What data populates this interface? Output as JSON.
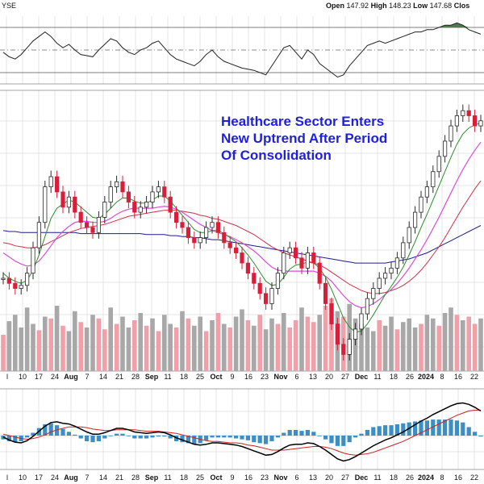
{
  "header": {
    "exchange": "YSE",
    "open_label": "Open",
    "open_value": "147.92",
    "high_label": "High",
    "high_value": "148.23",
    "low_label": "Low",
    "low_value": "147.68",
    "close_label": "Clos"
  },
  "annotation": {
    "line1": "Healthcare Sector Enters",
    "line2": "New Uptrend After Period",
    "line3": "Of Consolidation"
  },
  "colors": {
    "up_candle": "#2a2a2a",
    "down_candle": "#d81e3a",
    "ma_fast": "#2e8b2e",
    "ma_mid": "#d84ed8",
    "ma_slow": "#d03048",
    "ma_long": "#1c1c8c",
    "volume_up": "#a8a8a8",
    "volume_down": "#f0a0a8",
    "annotation_text": "#1f1fe0",
    "macd_line": "#000000",
    "signal_line": "#d02020",
    "histogram": "#3b8fc4",
    "rsi_fill": "#4e7a4e"
  },
  "chart_data": {
    "type": "line",
    "title": "Healthcare Sector Enters New Uptrend After Period Of Consolidation",
    "x_tick_labels": [
      "l",
      "10",
      "17",
      "24",
      "Aug",
      "7",
      "14",
      "21",
      "28",
      "Sep",
      "11",
      "18",
      "25",
      "Oct",
      "9",
      "16",
      "23",
      "Nov",
      "6",
      "13",
      "20",
      "27",
      "Dec",
      "11",
      "18",
      "26",
      "2024",
      "8",
      "16",
      "22"
    ],
    "grid": true,
    "panels": [
      "rsi",
      "price_volume",
      "macd"
    ],
    "price": {
      "ylim": [
        125,
        152
      ],
      "close": [
        133.5,
        133.0,
        132.5,
        132.8,
        134.0,
        136.5,
        139.0,
        142.5,
        143.5,
        142.0,
        140.5,
        141.5,
        140.0,
        139.0,
        138.5,
        138.0,
        139.5,
        141.0,
        142.5,
        143.0,
        142.0,
        141.0,
        140.0,
        140.5,
        141.0,
        142.0,
        142.5,
        141.5,
        140.0,
        139.0,
        138.5,
        137.5,
        137.0,
        137.5,
        138.5,
        139.0,
        138.0,
        137.0,
        136.5,
        136.0,
        135.0,
        134.0,
        133.0,
        132.0,
        131.0,
        132.5,
        134.0,
        136.0,
        136.5,
        135.5,
        134.5,
        136.0,
        135.0,
        133.0,
        131.0,
        129.0,
        127.0,
        126.0,
        127.5,
        128.5,
        130.0,
        131.5,
        132.5,
        133.5,
        134.0,
        134.5,
        135.5,
        137.0,
        138.5,
        140.0,
        141.5,
        142.5,
        144.0,
        145.5,
        147.0,
        148.5,
        149.5,
        150.0,
        149.5,
        148.5,
        149.0
      ],
      "ma_fast": [
        134.0,
        133.5,
        133.2,
        133.0,
        133.3,
        134.3,
        135.8,
        137.6,
        139.4,
        140.4,
        140.8,
        141.2,
        141.0,
        140.5,
        140.0,
        139.5,
        139.4,
        139.8,
        140.4,
        141.0,
        141.4,
        141.4,
        141.1,
        140.9,
        140.9,
        141.2,
        141.6,
        141.6,
        141.1,
        140.4,
        139.7,
        139.0,
        138.3,
        138.0,
        138.0,
        138.2,
        138.2,
        137.9,
        137.5,
        137.1,
        136.5,
        135.8,
        135.0,
        134.1,
        133.2,
        132.8,
        132.9,
        133.6,
        134.4,
        134.8,
        134.9,
        135.1,
        135.0,
        134.5,
        133.6,
        132.4,
        131.0,
        129.6,
        128.7,
        128.2,
        128.3,
        129.0,
        129.9,
        130.9,
        131.9,
        132.7,
        133.6,
        134.6,
        135.8,
        137.1,
        138.5,
        139.8,
        141.2,
        142.6,
        144.0,
        145.4,
        146.7,
        147.7,
        148.3,
        148.6,
        148.8
      ],
      "ma_mid": [
        136.0,
        135.6,
        135.2,
        134.9,
        134.7,
        134.8,
        135.2,
        135.9,
        136.7,
        137.5,
        138.1,
        138.6,
        139.0,
        139.1,
        139.1,
        139.0,
        139.0,
        139.1,
        139.4,
        139.8,
        140.1,
        140.3,
        140.4,
        140.4,
        140.4,
        140.4,
        140.5,
        140.6,
        140.5,
        140.3,
        140.0,
        139.6,
        139.2,
        138.8,
        138.5,
        138.2,
        138.0,
        137.8,
        137.6,
        137.3,
        137.0,
        136.6,
        136.2,
        135.7,
        135.1,
        134.6,
        134.3,
        134.2,
        134.2,
        134.2,
        134.2,
        134.2,
        134.2,
        134.0,
        133.7,
        133.2,
        132.5,
        131.8,
        131.2,
        130.8,
        130.6,
        130.7,
        131.0,
        131.4,
        131.9,
        132.4,
        133.0,
        133.7,
        134.5,
        135.4,
        136.3,
        137.3,
        138.4,
        139.5,
        140.7,
        141.9,
        143.1,
        144.2,
        145.2,
        146.1,
        146.9
      ],
      "ma_slow": [
        137.0,
        136.9,
        136.7,
        136.6,
        136.5,
        136.5,
        136.6,
        136.8,
        137.1,
        137.4,
        137.7,
        138.0,
        138.2,
        138.4,
        138.5,
        138.6,
        138.7,
        138.8,
        139.0,
        139.2,
        139.4,
        139.6,
        139.7,
        139.8,
        139.9,
        140.0,
        140.1,
        140.2,
        140.2,
        140.2,
        140.1,
        140.0,
        139.9,
        139.7,
        139.6,
        139.4,
        139.3,
        139.1,
        138.9,
        138.7,
        138.4,
        138.1,
        137.8,
        137.4,
        137.0,
        136.6,
        136.3,
        136.0,
        135.8,
        135.6,
        135.4,
        135.2,
        135.0,
        134.8,
        134.5,
        134.1,
        133.7,
        133.3,
        132.9,
        132.6,
        132.3,
        132.1,
        132.0,
        132.0,
        132.1,
        132.3,
        132.5,
        132.8,
        133.2,
        133.7,
        134.3,
        135.0,
        135.8,
        136.6,
        137.5,
        138.5,
        139.5,
        140.5,
        141.4,
        142.3,
        143.1
      ],
      "ma_long": [
        138.2,
        138.1,
        138.1,
        138.0,
        138.0,
        138.0,
        138.0,
        138.0,
        138.0,
        138.0,
        138.0,
        138.0,
        138.0,
        137.9,
        137.9,
        137.9,
        137.9,
        137.9,
        137.9,
        137.9,
        137.9,
        137.9,
        137.9,
        137.9,
        137.8,
        137.8,
        137.8,
        137.8,
        137.7,
        137.7,
        137.6,
        137.6,
        137.5,
        137.5,
        137.4,
        137.3,
        137.3,
        137.2,
        137.1,
        137.0,
        136.9,
        136.8,
        136.7,
        136.6,
        136.5,
        136.4,
        136.3,
        136.2,
        136.1,
        136.0,
        135.9,
        135.8,
        135.7,
        135.6,
        135.5,
        135.4,
        135.3,
        135.2,
        135.1,
        135.0,
        135.0,
        135.0,
        135.0,
        135.0,
        135.0,
        135.1,
        135.2,
        135.3,
        135.4,
        135.6,
        135.8,
        136.0,
        136.3,
        136.6,
        136.9,
        137.2,
        137.5,
        137.8,
        138.1,
        138.4,
        138.7
      ]
    },
    "volume": {
      "values": [
        40,
        55,
        62,
        48,
        70,
        52,
        45,
        60,
        58,
        72,
        50,
        44,
        66,
        54,
        48,
        62,
        58,
        46,
        70,
        52,
        60,
        48,
        56,
        64,
        50,
        58,
        44,
        62,
        52,
        48,
        66,
        58,
        50,
        60,
        44,
        56,
        64,
        52,
        48,
        60,
        68,
        56,
        50,
        62,
        46,
        58,
        52,
        64,
        48,
        56,
        70,
        60,
        54,
        62,
        72,
        80,
        66,
        60,
        74,
        58,
        52,
        48,
        44,
        56,
        50,
        60,
        46,
        54,
        58,
        48,
        52,
        62,
        58,
        50,
        64,
        70,
        62,
        56,
        60,
        52,
        58
      ],
      "up": [
        0,
        1,
        1,
        1,
        1,
        1,
        0,
        1,
        0,
        1,
        0,
        1,
        1,
        0,
        1,
        1,
        0,
        0,
        1,
        0,
        1,
        1,
        0,
        1,
        0,
        1,
        0,
        1,
        1,
        0,
        1,
        0,
        1,
        1,
        0,
        1,
        0,
        1,
        0,
        1,
        1,
        0,
        1,
        0,
        1,
        1,
        0,
        1,
        0,
        0,
        1,
        0,
        0,
        1,
        0,
        0,
        1,
        0,
        1,
        1,
        1,
        1,
        1,
        0,
        1,
        1,
        0,
        1,
        1,
        1,
        0,
        1,
        1,
        0,
        1,
        1,
        0,
        1,
        0,
        0,
        1
      ]
    },
    "rsi": {
      "ylim": [
        20,
        80
      ],
      "overbought": 70,
      "oversold": 30,
      "mid": 50,
      "values": [
        48,
        44,
        42,
        46,
        52,
        58,
        62,
        66,
        62,
        56,
        52,
        55,
        50,
        46,
        45,
        44,
        50,
        55,
        60,
        58,
        52,
        48,
        46,
        50,
        52,
        56,
        58,
        52,
        46,
        42,
        40,
        38,
        36,
        40,
        46,
        50,
        44,
        40,
        38,
        36,
        34,
        33,
        32,
        30,
        28,
        36,
        44,
        52,
        54,
        48,
        42,
        50,
        46,
        38,
        34,
        30,
        26,
        28,
        36,
        42,
        48,
        54,
        56,
        58,
        56,
        58,
        60,
        62,
        64,
        66,
        66,
        68,
        68,
        70,
        72,
        72,
        74,
        72,
        68,
        66,
        64
      ]
    },
    "macd": {
      "macd": [
        -0.2,
        -0.6,
        -0.9,
        -1.0,
        -0.7,
        -0.1,
        0.6,
        1.3,
        1.8,
        1.9,
        1.7,
        1.6,
        1.3,
        0.9,
        0.5,
        0.2,
        0.2,
        0.4,
        0.7,
        1.0,
        1.0,
        0.8,
        0.5,
        0.4,
        0.3,
        0.4,
        0.5,
        0.4,
        0.1,
        -0.3,
        -0.6,
        -0.9,
        -1.2,
        -1.3,
        -1.2,
        -1.0,
        -1.0,
        -1.1,
        -1.2,
        -1.3,
        -1.5,
        -1.8,
        -2.1,
        -2.4,
        -2.7,
        -2.6,
        -2.2,
        -1.7,
        -1.3,
        -1.2,
        -1.2,
        -1.0,
        -1.1,
        -1.5,
        -2.0,
        -2.6,
        -3.2,
        -3.5,
        -3.3,
        -2.9,
        -2.4,
        -1.9,
        -1.4,
        -1.0,
        -0.6,
        -0.3,
        0.1,
        0.5,
        1.0,
        1.5,
        2.0,
        2.4,
        2.9,
        3.3,
        3.7,
        4.1,
        4.4,
        4.5,
        4.3,
        3.9,
        3.4
      ],
      "signal": [
        0.2,
        0.0,
        -0.2,
        -0.4,
        -0.5,
        -0.4,
        -0.2,
        0.1,
        0.5,
        0.8,
        1.0,
        1.2,
        1.2,
        1.2,
        1.1,
        0.9,
        0.8,
        0.7,
        0.7,
        0.8,
        0.8,
        0.8,
        0.8,
        0.7,
        0.6,
        0.6,
        0.6,
        0.5,
        0.4,
        0.3,
        0.1,
        -0.1,
        -0.3,
        -0.5,
        -0.7,
        -0.8,
        -0.8,
        -0.9,
        -1.0,
        -1.0,
        -1.1,
        -1.3,
        -1.4,
        -1.6,
        -1.8,
        -2.0,
        -2.0,
        -2.0,
        -1.9,
        -1.8,
        -1.7,
        -1.6,
        -1.5,
        -1.5,
        -1.6,
        -1.8,
        -2.1,
        -2.4,
        -2.6,
        -2.7,
        -2.6,
        -2.5,
        -2.3,
        -2.0,
        -1.7,
        -1.4,
        -1.1,
        -0.8,
        -0.4,
        0.0,
        0.4,
        0.8,
        1.2,
        1.6,
        2.0,
        2.4,
        2.8,
        3.1,
        3.4,
        3.5,
        3.5
      ]
    }
  }
}
